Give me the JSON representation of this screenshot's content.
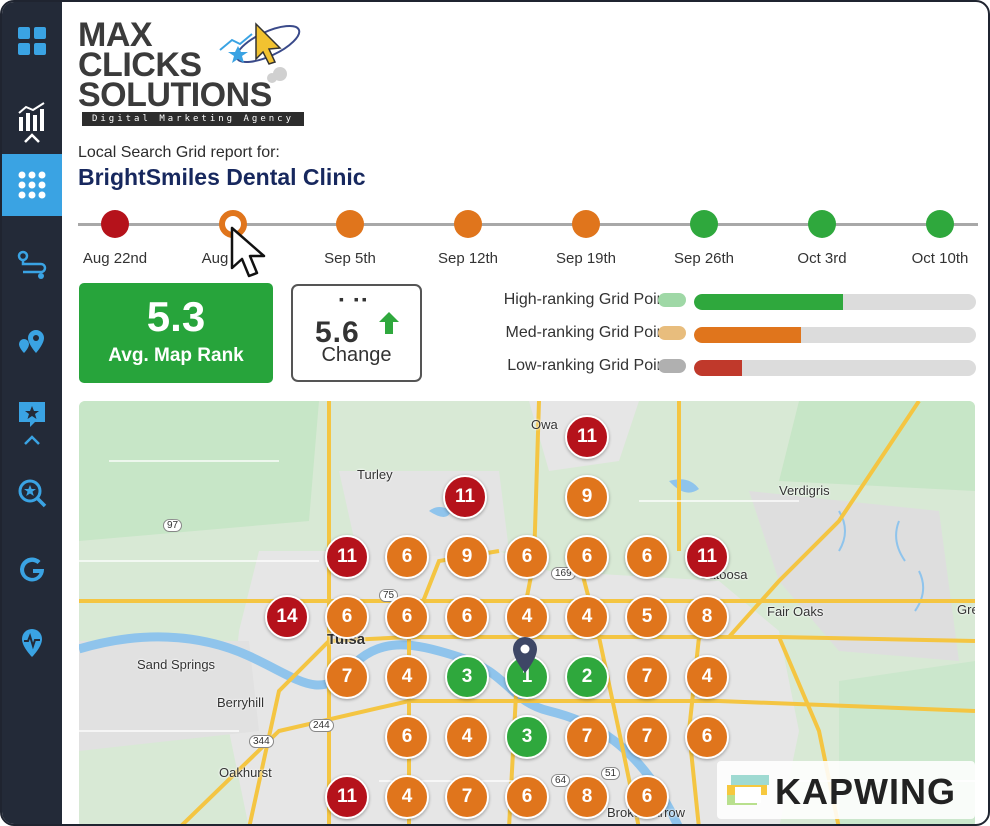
{
  "sidebar": {
    "items": [
      {
        "name": "dashboard-icon"
      },
      {
        "name": "analytics-icon"
      },
      {
        "name": "grid-icon",
        "active": true
      },
      {
        "name": "route-icon"
      },
      {
        "name": "map-pin-icon"
      },
      {
        "name": "star-review-icon"
      },
      {
        "name": "search-star-icon"
      },
      {
        "name": "google-icon"
      },
      {
        "name": "health-location-icon"
      }
    ]
  },
  "logo": {
    "line1": "MAX",
    "line2": "CLICKS",
    "line3": "SOLUTIONS",
    "tagline": "Digital Marketing Agency"
  },
  "report": {
    "label": "Local Search Grid report for:",
    "business_name": "BrightSmiles Dental Clinic"
  },
  "timeline": [
    {
      "label": "Aug 22nd",
      "status": "low",
      "color": "#b5121b"
    },
    {
      "label": "Aug",
      "status": "med",
      "color": "#e0751c",
      "selected": true
    },
    {
      "label": "Sep 5th",
      "status": "med",
      "color": "#e0751c"
    },
    {
      "label": "Sep 12th",
      "status": "med",
      "color": "#e0751c"
    },
    {
      "label": "Sep 19th",
      "status": "med",
      "color": "#e0751c"
    },
    {
      "label": "Sep 26th",
      "status": "high",
      "color": "#2fa83d"
    },
    {
      "label": "Oct 3rd",
      "status": "high",
      "color": "#2fa83d"
    },
    {
      "label": "Oct 10th",
      "status": "high",
      "color": "#2fa83d"
    }
  ],
  "stats": {
    "avg_rank_value": "5.3",
    "avg_rank_label": "Avg. Map Rank",
    "change_value": "5.6",
    "change_label": "Change",
    "change_direction": "up"
  },
  "legend": [
    {
      "label": "High-ranking Grid Points",
      "chip_color": "#9fd8a6",
      "fill_color": "#2fa83d",
      "fraction": 0.53
    },
    {
      "label": "Med-ranking Grid Points",
      "chip_color": "#e8bd7d",
      "fill_color": "#e0751c",
      "fraction": 0.38
    },
    {
      "label": "Low-ranking Grid Points",
      "chip_color": "#b0b0b0",
      "fill_color": "#c0392b",
      "fraction": 0.17
    }
  ],
  "map": {
    "labels": [
      {
        "name": "map-label-owasso",
        "text": "Owa"
      },
      {
        "name": "map-label-turley",
        "text": "Turley"
      },
      {
        "name": "map-label-verdigris",
        "text": "Verdigris"
      },
      {
        "name": "map-label-catoosa",
        "text": "Catoosa"
      },
      {
        "name": "map-label-fair-oaks",
        "text": "Fair Oaks"
      },
      {
        "name": "map-label-tulsa",
        "text": "Tulsa"
      },
      {
        "name": "map-label-sand-springs",
        "text": "Sand Springs"
      },
      {
        "name": "map-label-berryhill",
        "text": "Berryhill"
      },
      {
        "name": "map-label-oakhurst",
        "text": "Oakhurst"
      },
      {
        "name": "map-label-broken-arrow",
        "text": "Broken Arrow"
      },
      {
        "name": "map-label-gre",
        "text": "Gre"
      },
      {
        "name": "road-97",
        "text": "97"
      },
      {
        "name": "road-75",
        "text": "75"
      },
      {
        "name": "road-169",
        "text": "169"
      },
      {
        "name": "road-244",
        "text": "244"
      },
      {
        "name": "road-344",
        "text": "344"
      },
      {
        "name": "road-64",
        "text": "64"
      },
      {
        "name": "road-51",
        "text": "51"
      }
    ],
    "grid_points": [
      {
        "rank": "11",
        "level": "low"
      },
      {
        "rank": "11",
        "level": "low"
      },
      {
        "rank": "9",
        "level": "med"
      },
      {
        "rank": "11",
        "level": "low"
      },
      {
        "rank": "6",
        "level": "med"
      },
      {
        "rank": "9",
        "level": "med"
      },
      {
        "rank": "6",
        "level": "med"
      },
      {
        "rank": "6",
        "level": "med"
      },
      {
        "rank": "6",
        "level": "med"
      },
      {
        "rank": "11",
        "level": "low"
      },
      {
        "rank": "14",
        "level": "low"
      },
      {
        "rank": "6",
        "level": "med"
      },
      {
        "rank": "6",
        "level": "med"
      },
      {
        "rank": "6",
        "level": "med"
      },
      {
        "rank": "4",
        "level": "med"
      },
      {
        "rank": "4",
        "level": "med"
      },
      {
        "rank": "5",
        "level": "med"
      },
      {
        "rank": "8",
        "level": "med"
      },
      {
        "rank": "7",
        "level": "med"
      },
      {
        "rank": "4",
        "level": "med"
      },
      {
        "rank": "3",
        "level": "high"
      },
      {
        "rank": "1",
        "level": "high"
      },
      {
        "rank": "2",
        "level": "high"
      },
      {
        "rank": "7",
        "level": "med"
      },
      {
        "rank": "4",
        "level": "med"
      },
      {
        "rank": "6",
        "level": "med"
      },
      {
        "rank": "4",
        "level": "med"
      },
      {
        "rank": "3",
        "level": "high"
      },
      {
        "rank": "7",
        "level": "med"
      },
      {
        "rank": "7",
        "level": "med"
      },
      {
        "rank": "6",
        "level": "med"
      },
      {
        "rank": "11",
        "level": "low"
      },
      {
        "rank": "4",
        "level": "med"
      },
      {
        "rank": "7",
        "level": "med"
      },
      {
        "rank": "6",
        "level": "med"
      },
      {
        "rank": "8",
        "level": "med"
      },
      {
        "rank": "6",
        "level": "med"
      }
    ],
    "colors": {
      "low": "#b5121b",
      "med": "#e0751c",
      "high": "#2fa83d"
    }
  },
  "watermark": {
    "text": "KAPWING"
  }
}
